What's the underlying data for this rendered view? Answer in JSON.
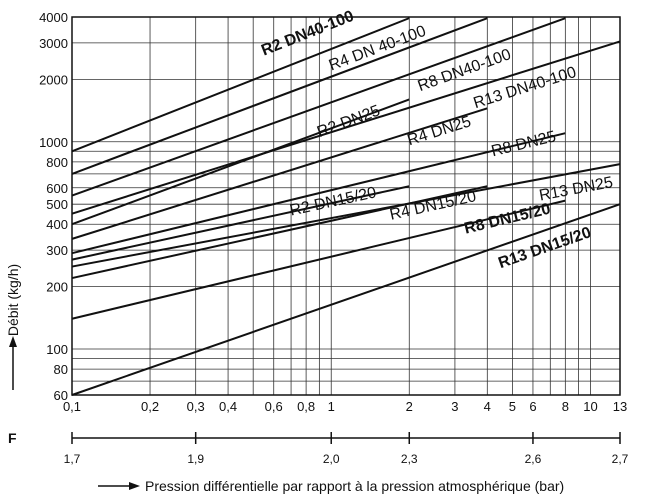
{
  "chart_data": {
    "type": "line",
    "xscale": "log",
    "yscale": "log",
    "xlim": [
      0.1,
      13
    ],
    "ylim": [
      60,
      4000
    ],
    "grid": true,
    "xlabel": "Pression différentielle par rapport à la pression atmosphérique (bar)",
    "ylabel": "Débit (kg/h)",
    "x_ticks": [
      {
        "v": 0.1,
        "t": "0,1"
      },
      {
        "v": 0.2,
        "t": "0,2"
      },
      {
        "v": 0.3,
        "t": "0,3"
      },
      {
        "v": 0.4,
        "t": "0,4"
      },
      {
        "v": 0.6,
        "t": "0,6"
      },
      {
        "v": 0.8,
        "t": "0,8"
      },
      {
        "v": 1,
        "t": "1"
      },
      {
        "v": 2,
        "t": "2"
      },
      {
        "v": 3,
        "t": "3"
      },
      {
        "v": 4,
        "t": "4"
      },
      {
        "v": 5,
        "t": "5"
      },
      {
        "v": 6,
        "t": "6"
      },
      {
        "v": 8,
        "t": "8"
      },
      {
        "v": 10,
        "t": "10"
      },
      {
        "v": 13,
        "t": "13"
      }
    ],
    "y_ticks": [
      {
        "v": 60,
        "t": "60"
      },
      {
        "v": 80,
        "t": "80"
      },
      {
        "v": 100,
        "t": "100"
      },
      {
        "v": 200,
        "t": "200"
      },
      {
        "v": 300,
        "t": "300"
      },
      {
        "v": 400,
        "t": "400"
      },
      {
        "v": 500,
        "t": "500"
      },
      {
        "v": 600,
        "t": "600"
      },
      {
        "v": 800,
        "t": "800"
      },
      {
        "v": 1000,
        "t": "1000"
      },
      {
        "v": 2000,
        "t": "2000"
      },
      {
        "v": 3000,
        "t": "3000"
      },
      {
        "v": 4000,
        "t": "4000"
      }
    ],
    "series": [
      {
        "name": "R2 DN40-100",
        "bold": true,
        "points": [
          [
            0.1,
            900
          ],
          [
            2.0,
            3950
          ]
        ]
      },
      {
        "name": "R4 DN 40-100",
        "bold": false,
        "points": [
          [
            0.1,
            700
          ],
          [
            4.0,
            3950
          ]
        ]
      },
      {
        "name": "R8 DN40-100",
        "bold": false,
        "points": [
          [
            0.1,
            550
          ],
          [
            8.0,
            3950
          ]
        ]
      },
      {
        "name": "R13 DN40-100",
        "bold": false,
        "points": [
          [
            0.1,
            450
          ],
          [
            13.0,
            3050
          ]
        ]
      },
      {
        "name": "R2 DN25",
        "bold": false,
        "points": [
          [
            0.1,
            400
          ],
          [
            2.0,
            1600
          ]
        ]
      },
      {
        "name": "R4 DN25",
        "bold": false,
        "points": [
          [
            0.1,
            340
          ],
          [
            4.0,
            1450
          ]
        ]
      },
      {
        "name": "R8 DN25",
        "bold": false,
        "points": [
          [
            0.1,
            290
          ],
          [
            8.0,
            1100
          ]
        ]
      },
      {
        "name": "R13 DN25",
        "bold": false,
        "points": [
          [
            0.1,
            250
          ],
          [
            13.0,
            780
          ]
        ]
      },
      {
        "name": "R2 DN15/20",
        "bold": false,
        "points": [
          [
            0.1,
            270
          ],
          [
            2.0,
            610
          ]
        ]
      },
      {
        "name": "R4 DN15/20",
        "bold": false,
        "points": [
          [
            0.1,
            220
          ],
          [
            4.0,
            610
          ]
        ]
      },
      {
        "name": "R8 DN15/20",
        "bold": true,
        "points": [
          [
            0.1,
            140
          ],
          [
            8.0,
            520
          ]
        ]
      },
      {
        "name": "R13 DN15/20",
        "bold": true,
        "points": [
          [
            0.1,
            60
          ],
          [
            13.0,
            500
          ]
        ]
      }
    ],
    "series_label_pos": [
      {
        "x": 0.55,
        "y": 2600
      },
      {
        "x": 1.0,
        "y": 2200
      },
      {
        "x": 2.2,
        "y": 1750
      },
      {
        "x": 3.6,
        "y": 1450
      },
      {
        "x": 0.9,
        "y": 1050
      },
      {
        "x": 2.0,
        "y": 960
      },
      {
        "x": 4.2,
        "y": 850
      },
      {
        "x": 6.4,
        "y": 520
      },
      {
        "x": 0.7,
        "y": 440
      },
      {
        "x": 1.7,
        "y": 420
      },
      {
        "x": 3.3,
        "y": 360
      },
      {
        "x": 4.5,
        "y": 245
      }
    ]
  },
  "f_scale": {
    "label": "F",
    "ticks": [
      {
        "x": 0.1,
        "t": "1,7"
      },
      {
        "x": 0.3,
        "t": "1,9"
      },
      {
        "x": 1.0,
        "t": "2,0"
      },
      {
        "x": 2.0,
        "t": "2,3"
      },
      {
        "x": 6.0,
        "t": "2,6"
      },
      {
        "x": 13.0,
        "t": "2,7"
      }
    ]
  }
}
